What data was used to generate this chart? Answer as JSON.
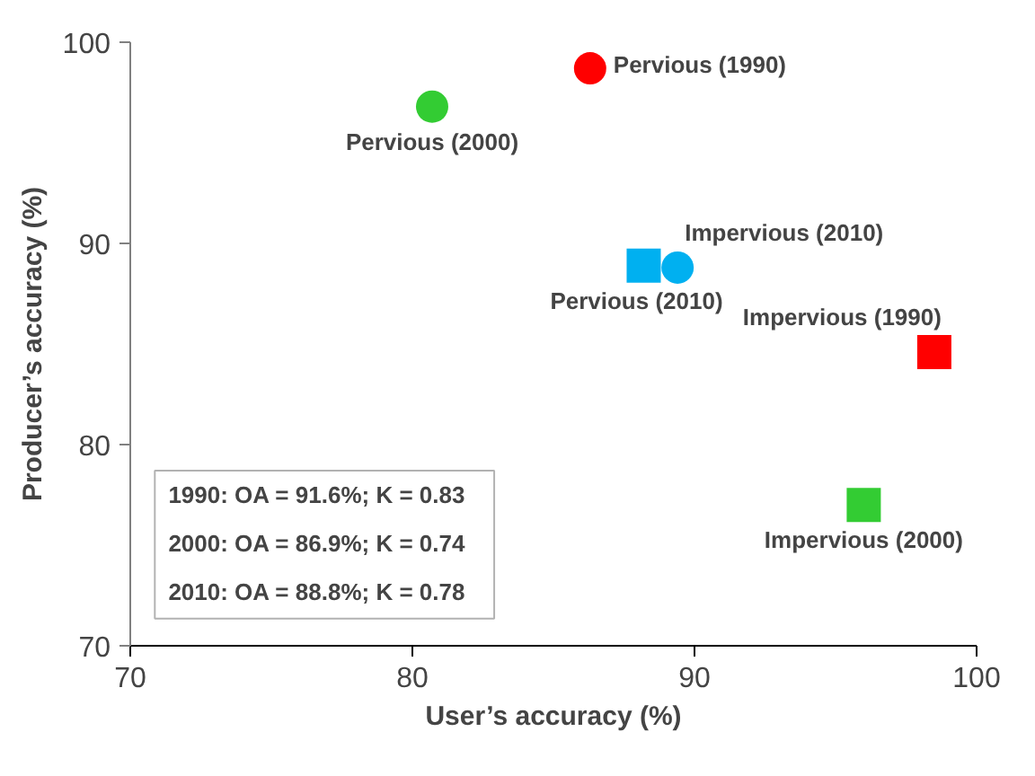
{
  "chart_data": {
    "type": "scatter",
    "xlabel": "User’s accuracy (%)",
    "ylabel": "Producer’s accuracy (%)",
    "xlim": [
      70,
      100
    ],
    "ylim": [
      70,
      100
    ],
    "xticks": [
      70,
      80,
      90,
      100
    ],
    "yticks": [
      70,
      80,
      90,
      100
    ],
    "grid": false,
    "series": [
      {
        "marker": "circle",
        "x": [
          86.3,
          80.7,
          89.4
        ],
        "values": [
          98.7,
          96.8,
          88.8
        ],
        "colors": [
          "#ff0000",
          "#33cc33",
          "#00b0f0"
        ]
      },
      {
        "marker": "square",
        "x": [
          98.5,
          96.0,
          88.2
        ],
        "values": [
          84.6,
          77.0,
          88.9
        ],
        "colors": [
          "#ff0000",
          "#33cc33",
          "#00b0f0"
        ]
      }
    ],
    "annotations": [
      {
        "text": "Pervious (1990)",
        "x": 86.3,
        "y": 98.7
      },
      {
        "text": "Pervious (2000)",
        "x": 80.7,
        "y": 96.8
      },
      {
        "text": "Impervious (2010)",
        "x": 89.4,
        "y": 88.8
      },
      {
        "text": "Impervious (1990)",
        "x": 98.5,
        "y": 84.6
      },
      {
        "text": "Impervious (2000)",
        "x": 96.0,
        "y": 77.0
      },
      {
        "text": "Pervious (2010)",
        "x": 88.2,
        "y": 88.9
      },
      "1990: OA = 91.6%; K = 0.83",
      "2000: OA = 86.9%; K = 0.74",
      "2010: OA = 88.8%; K = 0.78"
    ]
  }
}
